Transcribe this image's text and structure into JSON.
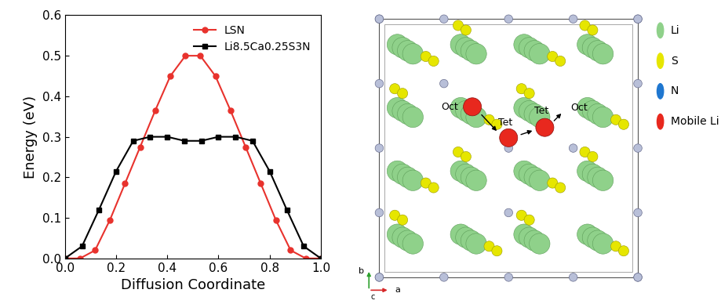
{
  "chart_data": {
    "type": "line",
    "xlabel": "Diffusion Coordinate",
    "ylabel": "Energy (eV)",
    "xlim": [
      0.0,
      1.0
    ],
    "ylim": [
      0.0,
      0.6
    ],
    "xticks": [
      {
        "value": 0.0,
        "label": "0.0"
      },
      0.2,
      0.4,
      0.6,
      0.8,
      {
        "value": 1.0,
        "label": "1.0"
      }
    ],
    "yticks": [
      {
        "value": 0.0,
        "label": "0.0"
      },
      0.1,
      0.2,
      0.3,
      0.4,
      0.5,
      0.6
    ],
    "legend": "upper right",
    "series": [
      {
        "name": "LSN",
        "color": "#e8322d",
        "marker": "o",
        "line_style": "solid",
        "x": [
          0.0,
          0.059,
          0.118,
          0.176,
          0.235,
          0.294,
          0.353,
          0.412,
          0.471,
          0.529,
          0.588,
          0.647,
          0.706,
          0.765,
          0.824,
          0.882,
          0.941,
          1.0
        ],
        "values": [
          0.0,
          0.0,
          0.02,
          0.095,
          0.185,
          0.275,
          0.365,
          0.45,
          0.5,
          0.5,
          0.45,
          0.365,
          0.275,
          0.185,
          0.095,
          0.02,
          0.0,
          0.0
        ]
      },
      {
        "name": "Li8.5Ca0.25S3N",
        "color": "#000000",
        "marker": "s",
        "line_style": "solid",
        "x": [
          0.0,
          0.067,
          0.133,
          0.2,
          0.267,
          0.333,
          0.4,
          0.467,
          0.533,
          0.6,
          0.667,
          0.733,
          0.8,
          0.867,
          0.933,
          1.0
        ],
        "values": [
          0.0,
          0.03,
          0.12,
          0.215,
          0.29,
          0.3,
          0.3,
          0.29,
          0.29,
          0.3,
          0.3,
          0.29,
          0.215,
          0.12,
          0.03,
          0.0
        ]
      }
    ]
  },
  "diagram": {
    "legend": [
      {
        "label": "Li",
        "color": "#8fd18a"
      },
      {
        "label": "S",
        "color": "#e6e600"
      },
      {
        "label": "N",
        "color": "#1f77d0"
      },
      {
        "label": "Mobile Li",
        "color": "#e8281e"
      }
    ],
    "site_labels": [
      "Oct",
      "Tet",
      "Tet",
      "Oct"
    ],
    "axis_labels": [
      "b",
      "a",
      "c"
    ]
  }
}
